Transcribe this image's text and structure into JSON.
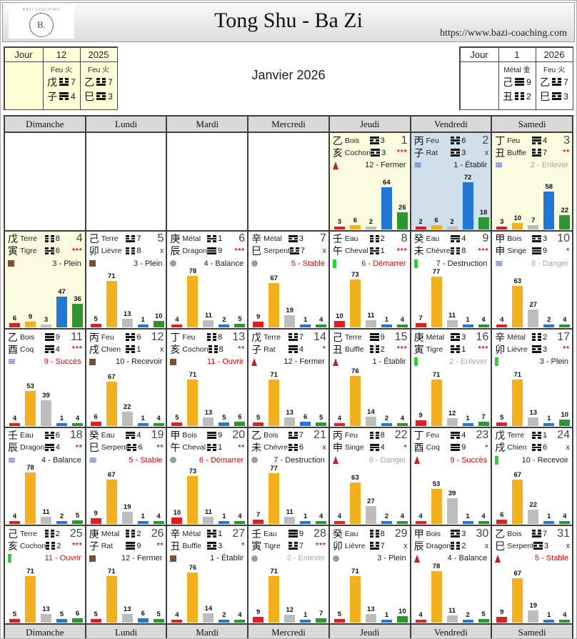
{
  "header": {
    "title": "Tong Shu - Ba Zi",
    "url": "https://www.bazi-coaching.com",
    "logo_monogram": "B.",
    "logo_text": "BAZI COACHING"
  },
  "month_title": "Janvier 2026",
  "pillar_boxes": {
    "left": {
      "label": "Jour",
      "col1": {
        "header": "12",
        "element": "Feu 火",
        "stem": {
          "hanzi": "戊",
          "num": 7
        },
        "branch": {
          "hanzi": "子",
          "num": 4
        }
      },
      "col2": {
        "header": "2025",
        "element": "Feu 火",
        "stem": {
          "hanzi": "乙",
          "num": 7
        },
        "branch": {
          "hanzi": "巳",
          "num": 3
        }
      }
    },
    "right": {
      "label": "Jour",
      "col1": {
        "header": "1",
        "element": "Métal 金",
        "stem": {
          "hanzi": "己",
          "num": 9
        },
        "branch": {
          "hanzi": "丑",
          "num": 2
        }
      },
      "col2": {
        "header": "2026",
        "element": "Feu 火",
        "stem": {
          "hanzi": "乙",
          "num": 7
        },
        "branch": {
          "hanzi": "巳",
          "num": 3
        }
      }
    }
  },
  "calendar": {
    "day_headers": [
      "Dimanche",
      "Lundi",
      "Mardi",
      "Mercredi",
      "Jeudi",
      "Vendredi",
      "Samedi"
    ],
    "first_day_column": 4,
    "bar_colors": [
      "#e02020",
      "#f2b01e",
      "#bdbdbd",
      "#2277d4",
      "#2d9630"
    ],
    "bar_series_names": [
      "rouge",
      "jaune",
      "gris",
      "bleu",
      "vert"
    ],
    "days": [
      {
        "date": 1,
        "stem_hanzi": "乙",
        "stem_element": "Bois",
        "stem_num": 3,
        "branch_hanzi": "亥",
        "branch_animal": "Cochon",
        "branch_num": 3,
        "marker": "***",
        "officer": "12 - Fermer",
        "officer_color": "black",
        "icon": "flame",
        "bars": [
          3,
          6,
          2,
          64,
          26
        ],
        "bg": "yellow"
      },
      {
        "date": 2,
        "stem_hanzi": "丙",
        "stem_element": "Feu",
        "stem_num": 6,
        "branch_hanzi": "子",
        "branch_animal": "Rat",
        "branch_num": 3,
        "marker": "x",
        "officer": "1 - Établir",
        "officer_color": "black",
        "icon": "waves",
        "bars": [
          2,
          6,
          2,
          72,
          18
        ],
        "bg": "blue"
      },
      {
        "date": 3,
        "stem_hanzi": "丁",
        "stem_element": "Feu",
        "stem_num": 4,
        "branch_hanzi": "丑",
        "branch_animal": "Buffle",
        "branch_num": 7,
        "marker": "**",
        "officer": "2 - Enlever",
        "officer_color": "gray",
        "icon": "waves",
        "bars": [
          3,
          10,
          7,
          58,
          22
        ],
        "bg": "yellow"
      },
      {
        "date": 4,
        "stem_hanzi": "戊",
        "stem_element": "Terre",
        "stem_num": 8,
        "branch_hanzi": "寅",
        "branch_animal": "Tigre",
        "branch_num": 6,
        "marker": "***",
        "officer": "3 - Plein",
        "officer_color": "black",
        "icon": "square",
        "bars": [
          6,
          9,
          3,
          47,
          36
        ],
        "bg": "yellow"
      },
      {
        "date": 5,
        "stem_hanzi": "己",
        "stem_element": "Terre",
        "stem_num": 7,
        "branch_hanzi": "卯",
        "branch_animal": "Lièvre",
        "branch_num": 8,
        "marker": "x",
        "officer": "3 - Plein",
        "officer_color": "black",
        "icon": "square",
        "bars": [
          5,
          71,
          13,
          1,
          10
        ],
        "bg": "white"
      },
      {
        "date": 6,
        "stem_hanzi": "庚",
        "stem_element": "Métal",
        "stem_num": 1,
        "branch_hanzi": "辰",
        "branch_animal": "Dragon",
        "branch_num": 9,
        "marker": "***",
        "officer": "4 - Balance",
        "officer_color": "black",
        "icon": "circle",
        "bars": [
          4,
          78,
          11,
          2,
          5
        ],
        "bg": "white"
      },
      {
        "date": 7,
        "stem_hanzi": "辛",
        "stem_element": "Métal",
        "stem_num": 3,
        "branch_hanzi": "巳",
        "branch_animal": "Serpent",
        "branch_num": 7,
        "marker": "x",
        "officer": "5 - Stable",
        "officer_color": "red",
        "icon": "circle",
        "bars": [
          9,
          67,
          19,
          1,
          4
        ],
        "bg": "white"
      },
      {
        "date": 8,
        "stem_hanzi": "壬",
        "stem_element": "Eau",
        "stem_num": 2,
        "branch_hanzi": "午",
        "branch_animal": "Cheval",
        "branch_num": 1,
        "marker": "***",
        "officer": "6 - Démarrer",
        "officer_color": "red",
        "icon": "bar",
        "bars": [
          10,
          73,
          11,
          1,
          4
        ],
        "bg": "white"
      },
      {
        "date": 9,
        "stem_hanzi": "癸",
        "stem_element": "Eau",
        "stem_num": 4,
        "branch_hanzi": "未",
        "branch_animal": "Chèvre",
        "branch_num": 8,
        "marker": "***",
        "officer": "7 - Destruction",
        "officer_color": "black",
        "icon": "bar",
        "bars": [
          7,
          77,
          11,
          1,
          4
        ],
        "bg": "white"
      },
      {
        "date": 10,
        "stem_hanzi": "甲",
        "stem_element": "Bois",
        "stem_num": 3,
        "branch_hanzi": "申",
        "branch_animal": "Singe",
        "branch_num": 9,
        "marker": "*",
        "officer": "8 - Danger",
        "officer_color": "gray",
        "icon": "waves",
        "bars": [
          4,
          63,
          27,
          2,
          4
        ],
        "bg": "white"
      },
      {
        "date": 11,
        "stem_hanzi": "乙",
        "stem_element": "Bois",
        "stem_num": 9,
        "branch_hanzi": "酉",
        "branch_animal": "Coq",
        "branch_num": 4,
        "marker": "***",
        "officer": "9 - Succès",
        "officer_color": "red",
        "icon": "waves",
        "bars": [
          4,
          53,
          39,
          1,
          4
        ],
        "bg": "white"
      },
      {
        "date": 12,
        "stem_hanzi": "丙",
        "stem_element": "Feu",
        "stem_num": 6,
        "branch_hanzi": "戌",
        "branch_animal": "Chien",
        "branch_num": 1,
        "marker": "x",
        "officer": "10 - Recevoir",
        "officer_color": "black",
        "icon": "square",
        "bars": [
          6,
          67,
          22,
          1,
          4
        ],
        "bg": "white"
      },
      {
        "date": 13,
        "stem_hanzi": "丁",
        "stem_element": "Feu",
        "stem_num": 8,
        "branch_hanzi": "亥",
        "branch_animal": "Cochon",
        "branch_num": 8,
        "marker": "**",
        "officer": "11 - Ouvrir",
        "officer_color": "red",
        "icon": "square",
        "bars": [
          5,
          71,
          13,
          5,
          6
        ],
        "bg": "white"
      },
      {
        "date": 14,
        "stem_hanzi": "戊",
        "stem_element": "Terre",
        "stem_num": 7,
        "branch_hanzi": "子",
        "branch_animal": "Rat",
        "branch_num": 4,
        "marker": "*",
        "officer": "12 - Fermer",
        "officer_color": "black",
        "icon": "flame",
        "bars": [
          5,
          71,
          13,
          6,
          5
        ],
        "bg": "white"
      },
      {
        "date": 15,
        "stem_hanzi": "己",
        "stem_element": "Terre",
        "stem_num": 9,
        "branch_hanzi": "丑",
        "branch_animal": "Buffle",
        "branch_num": 2,
        "marker": "***",
        "officer": "1 - Établir",
        "officer_color": "black",
        "icon": "flame",
        "bars": [
          4,
          76,
          14,
          2,
          4
        ],
        "bg": "white"
      },
      {
        "date": 16,
        "stem_hanzi": "庚",
        "stem_element": "Métal",
        "stem_num": 3,
        "branch_hanzi": "寅",
        "branch_animal": "Tigre",
        "branch_num": 1,
        "marker": "***",
        "officer": "2 - Enlever",
        "officer_color": "gray",
        "icon": "bar",
        "bars": [
          9,
          71,
          12,
          1,
          7
        ],
        "bg": "white"
      },
      {
        "date": 17,
        "stem_hanzi": "辛",
        "stem_element": "Métal",
        "stem_num": 2,
        "branch_hanzi": "卯",
        "branch_animal": "Lièvre",
        "branch_num": 3,
        "marker": "**",
        "officer": "3 - Plein",
        "officer_color": "black",
        "icon": "bar",
        "bars": [
          5,
          71,
          13,
          1,
          10
        ],
        "bg": "white"
      },
      {
        "date": 18,
        "stem_hanzi": "壬",
        "stem_element": "Eau",
        "stem_num": 6,
        "branch_hanzi": "辰",
        "branch_animal": "Dragon",
        "branch_num": 4,
        "marker": "**",
        "officer": "4 - Balance",
        "officer_color": "black",
        "icon": "waves",
        "bars": [
          4,
          78,
          11,
          2,
          5
        ],
        "bg": "white"
      },
      {
        "date": 19,
        "stem_hanzi": "癸",
        "stem_element": "Eau",
        "stem_num": 4,
        "branch_hanzi": "巳",
        "branch_animal": "Serpent",
        "branch_num": 6,
        "marker": "**",
        "officer": "5 - Stable",
        "officer_color": "red",
        "icon": "waves",
        "bars": [
          9,
          67,
          19,
          1,
          4
        ],
        "bg": "white"
      },
      {
        "date": 20,
        "stem_hanzi": "甲",
        "stem_element": "Bois",
        "stem_num": 9,
        "branch_hanzi": "午",
        "branch_animal": "Cheval",
        "branch_num": 1,
        "marker": "**",
        "officer": "6 - Démarrer",
        "officer_color": "red",
        "icon": "circle",
        "bars": [
          10,
          73,
          11,
          1,
          4
        ],
        "bg": "white"
      },
      {
        "date": 21,
        "stem_hanzi": "乙",
        "stem_element": "Bois",
        "stem_num": 7,
        "branch_hanzi": "未",
        "branch_animal": "Chèvre",
        "branch_num": 6,
        "marker": "x",
        "officer": "7 - Destruction",
        "officer_color": "black",
        "icon": "circle",
        "bars": [
          7,
          77,
          11,
          1,
          4
        ],
        "bg": "white"
      },
      {
        "date": 22,
        "stem_hanzi": "丙",
        "stem_element": "Feu",
        "stem_num": 8,
        "branch_hanzi": "申",
        "branch_animal": "Singe",
        "branch_num": 4,
        "marker": "*",
        "officer": "8 - Danger",
        "officer_color": "gray",
        "icon": "flame",
        "bars": [
          4,
          63,
          27,
          2,
          4
        ],
        "bg": "white"
      },
      {
        "date": 23,
        "stem_hanzi": "丁",
        "stem_element": "Feu",
        "stem_num": 4,
        "branch_hanzi": "酉",
        "branch_animal": "Coq",
        "branch_num": 9,
        "marker": "*",
        "officer": "9 - Succès",
        "officer_color": "red",
        "icon": "flame",
        "bars": [
          4,
          53,
          39,
          1,
          4
        ],
        "bg": "white"
      },
      {
        "date": 24,
        "stem_hanzi": "戊",
        "stem_element": "Terre",
        "stem_num": 1,
        "branch_hanzi": "戌",
        "branch_animal": "Chien",
        "branch_num": 6,
        "marker": "x",
        "officer": "10 - Recevoir",
        "officer_color": "black",
        "icon": "bar",
        "bars": [
          6,
          67,
          22,
          1,
          4
        ],
        "bg": "white"
      },
      {
        "date": 25,
        "stem_hanzi": "己",
        "stem_element": "Terre",
        "stem_num": 2,
        "branch_hanzi": "亥",
        "branch_animal": "Cochon",
        "branch_num": 2,
        "marker": "***",
        "officer": "11 - Ouvrir",
        "officer_color": "red",
        "icon": "bar",
        "bars": [
          5,
          71,
          13,
          5,
          6
        ],
        "bg": "white"
      },
      {
        "date": 26,
        "stem_hanzi": "庚",
        "stem_element": "Métal",
        "stem_num": 2,
        "branch_hanzi": "子",
        "branch_animal": "Rat",
        "branch_num": 9,
        "marker": "**",
        "officer": "12 - Fermer",
        "officer_color": "black",
        "icon": "square",
        "bars": [
          5,
          71,
          13,
          6,
          5
        ],
        "bg": "white"
      },
      {
        "date": 27,
        "stem_hanzi": "辛",
        "stem_element": "Métal",
        "stem_num": 1,
        "branch_hanzi": "丑",
        "branch_animal": "Buffle",
        "branch_num": 3,
        "marker": "*",
        "officer": "1 - Établir",
        "officer_color": "black",
        "icon": "square",
        "bars": [
          4,
          76,
          14,
          2,
          4
        ],
        "bg": "white"
      },
      {
        "date": 28,
        "stem_hanzi": "壬",
        "stem_element": "Eau",
        "stem_num": 9,
        "branch_hanzi": "寅",
        "branch_animal": "Tigre",
        "branch_num": 7,
        "marker": "***",
        "officer": "2 - Enlever",
        "officer_color": "gray",
        "icon": "circle",
        "bars": [
          9,
          71,
          12,
          1,
          7
        ],
        "bg": "white"
      },
      {
        "date": 29,
        "stem_hanzi": "癸",
        "stem_element": "Eau",
        "stem_num": 8,
        "branch_hanzi": "卯",
        "branch_animal": "Lièvre",
        "branch_num": 7,
        "marker": "x",
        "officer": "3 - Plein",
        "officer_color": "black",
        "icon": "circle",
        "bars": [
          5,
          71,
          13,
          1,
          10
        ],
        "bg": "white"
      },
      {
        "date": 30,
        "stem_hanzi": "甲",
        "stem_element": "Bois",
        "stem_num": 3,
        "branch_hanzi": "辰",
        "branch_animal": "Dragon",
        "branch_num": 2,
        "marker": "x",
        "officer": "4 - Balance",
        "officer_color": "black",
        "icon": "flame",
        "bars": [
          4,
          78,
          11,
          2,
          5
        ],
        "bg": "white"
      },
      {
        "date": 31,
        "stem_hanzi": "乙",
        "stem_element": "Bois",
        "stem_num": 7,
        "branch_hanzi": "巳",
        "branch_animal": "Serpent",
        "branch_num": 3,
        "marker": "x",
        "officer": "5 - Stable",
        "officer_color": "red",
        "icon": "flame",
        "bars": [
          9,
          67,
          19,
          1,
          4
        ],
        "bg": "white"
      }
    ]
  }
}
